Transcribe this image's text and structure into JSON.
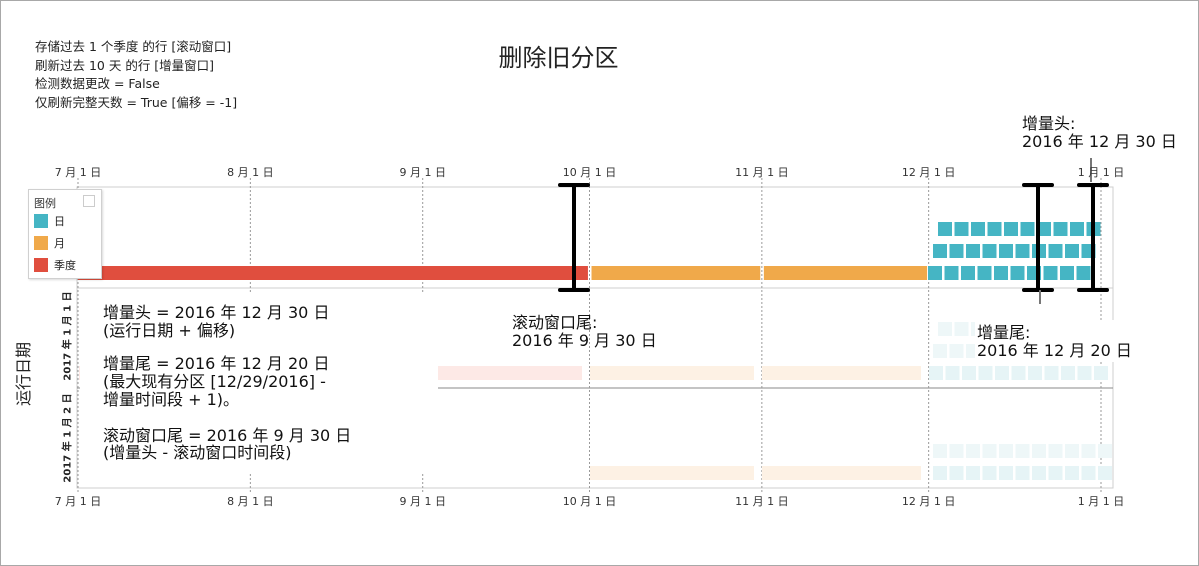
{
  "title": "删除旧分区",
  "info": {
    "line1": "存储过去 1 个季度 的行 [滚动窗口]",
    "line2": "刷新过去 10 天 的行 [增量窗口]",
    "line3": "检测数据更改 = False",
    "line4": "仅刷新完整天数 = True [偏移 = -1]"
  },
  "legend": {
    "title": "图例",
    "items": [
      {
        "label": "日",
        "color": "#45b5c4"
      },
      {
        "label": "月",
        "color": "#f0a94a"
      },
      {
        "label": "季度",
        "color": "#e04e3e"
      }
    ]
  },
  "y_axis_label": "运行日期",
  "row_labels": [
    "2017 年 1 月 1 日",
    "2017 年 1 月 2 日"
  ],
  "callouts": {
    "incr_head_top": [
      "增量头:",
      "2016 年 12 月 30 日"
    ],
    "incr_tail": [
      "增量尾:",
      "2016 年 12 月 20 日"
    ],
    "rolling_tail": [
      "滚动窗口尾:",
      "2016 年 9 月 30 日"
    ]
  },
  "notes": {
    "n1": "增量头 = 2016 年 12 月 30 日",
    "n2": "(运行日期 + 偏移)",
    "n3": "增量尾 = 2016 年 12 月 20 日",
    "n4": "(最大现有分区 [12/29/2016] -",
    "n5": "增量时间段 + 1)。",
    "n6": "滚动窗口尾 = 2016 年 9 月 30 日",
    "n7": "(增量头 - 滚动窗口时间段)"
  },
  "chart_data": {
    "type": "timeline",
    "x_axis_ticks": [
      "7 月 1 日",
      "8 月 1 日",
      "9 月 1 日",
      "10 月 1 日",
      "11 月 1 日",
      "12 月 1 日",
      "1 月 1 日"
    ],
    "partitions": [
      {
        "granularity": "季度",
        "start": "2016-07-01",
        "end": "2016-09-30"
      },
      {
        "granularity": "月",
        "start": "2016-10-01",
        "end": "2016-10-31"
      },
      {
        "granularity": "月",
        "start": "2016-11-01",
        "end": "2016-11-30"
      },
      {
        "granularity": "月",
        "start": "2016-12-01",
        "end": "2016-12-31"
      },
      {
        "granularity": "日",
        "start": "2016-12-01",
        "end": "2016-12-30"
      }
    ],
    "markers": [
      {
        "name": "滚动窗口尾",
        "date": "2016-09-30"
      },
      {
        "name": "增量尾",
        "date": "2016-12-20"
      },
      {
        "name": "增量头",
        "date": "2016-12-30"
      }
    ]
  }
}
